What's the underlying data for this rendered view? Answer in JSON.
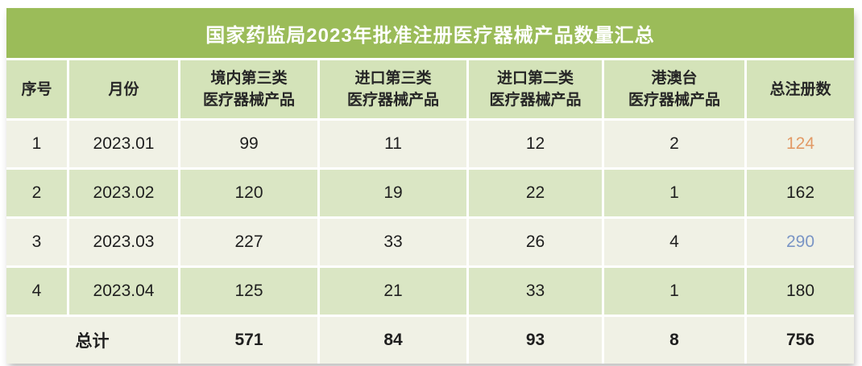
{
  "title": "国家药监局2023年批准注册医疗器械产品数量汇总",
  "header": {
    "col_index": "序号",
    "col_month": "月份",
    "col_domestic_class3_line1": "境内第三类",
    "col_domestic_class3_line2": "医疗器械产品",
    "col_import_class3_line1": "进口第三类",
    "col_import_class3_line2": "医疗器械产品",
    "col_import_class2_line1": "进口第二类",
    "col_import_class2_line2": "医疗器械产品",
    "col_hmt_line1": "港澳台",
    "col_hmt_line2": "医疗器械产品",
    "col_total": "总注册数"
  },
  "colors": {
    "title_bg": "#9BBC59",
    "title_text": "#FFFFFF",
    "header_bg": "#D4E3B9",
    "row_light_bg": "#F0F1E5",
    "row_green_bg": "#DAE6C4",
    "text_dark": "#1F1F1F",
    "total_124": "#E29A66",
    "total_290": "#7A95C5"
  },
  "chart_data": {
    "type": "table",
    "title": "国家药监局2023年批准注册医疗器械产品数量汇总",
    "columns": [
      "序号",
      "月份",
      "境内第三类医疗器械产品",
      "进口第三类医疗器械产品",
      "进口第二类医疗器械产品",
      "港澳台医疗器械产品",
      "总注册数"
    ],
    "rows": [
      [
        1,
        "2023.01",
        99,
        11,
        12,
        2,
        124
      ],
      [
        2,
        "2023.02",
        120,
        19,
        22,
        1,
        162
      ],
      [
        3,
        "2023.03",
        227,
        33,
        26,
        4,
        290
      ],
      [
        4,
        "2023.04",
        125,
        21,
        33,
        1,
        180
      ]
    ],
    "total_row": [
      "总计",
      571,
      84,
      93,
      8,
      756
    ],
    "highlighted_cells": [
      {
        "row_index": 0,
        "column": "总注册数",
        "value": 124,
        "color": "#E29A66"
      },
      {
        "row_index": 2,
        "column": "总注册数",
        "value": 290,
        "color": "#7A95C5"
      }
    ],
    "row_striping": [
      "light",
      "green",
      "light",
      "green",
      "light"
    ]
  }
}
